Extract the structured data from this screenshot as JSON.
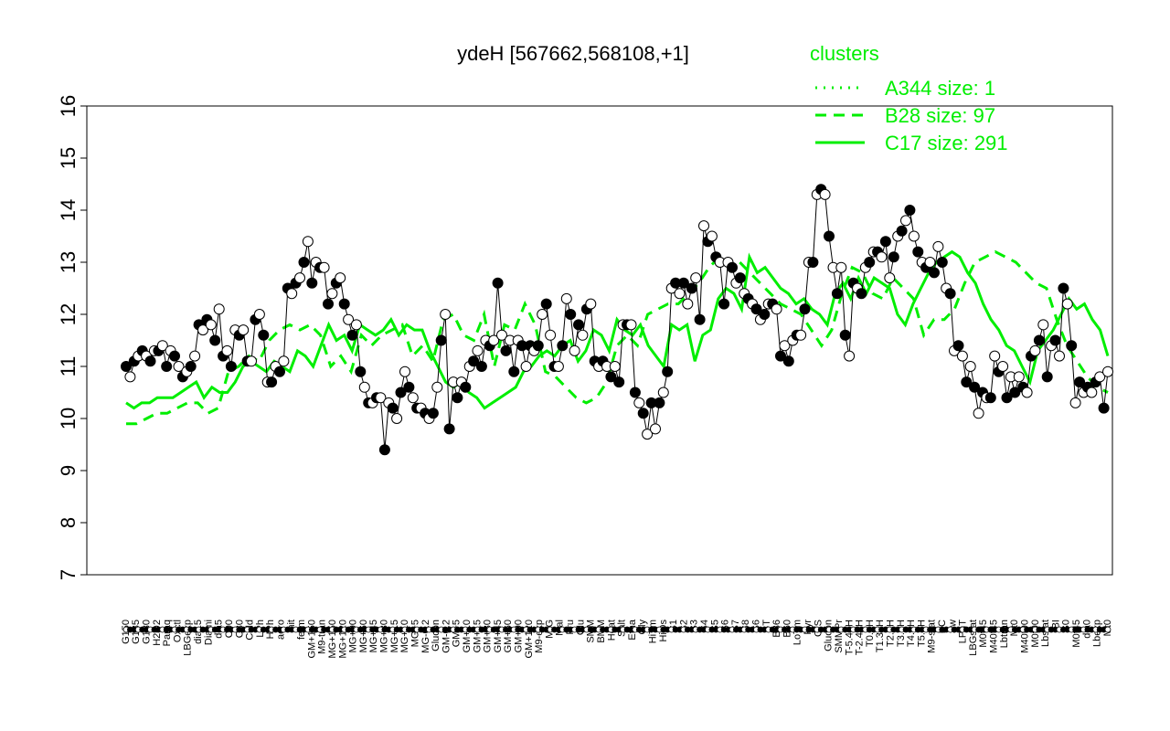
{
  "chart_data": {
    "type": "line",
    "title": "ydeH [567662,568108,+1]",
    "xlabel": "",
    "ylabel": "",
    "ylim": [
      7,
      16
    ],
    "yticks": [
      "7",
      "8",
      "9",
      "10",
      "11",
      "12",
      "13",
      "14",
      "15",
      "16"
    ],
    "xtick_labels_upper": [
      "G150",
      "G135",
      "G180",
      "H2O2",
      "Paraq",
      "Oxctl",
      "LBGexp",
      "dia15",
      "Diami",
      "dia5",
      "C90",
      "C30",
      "Cold",
      "LPh",
      "HPh",
      "aero",
      "nit",
      "ferm",
      "GM+150",
      "M9-tran",
      "MG+150",
      "MG+120",
      "MG+90",
      "MG+60",
      "MG+45",
      "MG+30",
      "MG+15",
      "MG+10",
      "MG+5",
      "MG-0.2",
      "Glucon",
      "GM-0.2",
      "GM+5",
      "GM+10",
      "GM+15",
      "GM+30",
      "GM+45",
      "GM+60",
      "GM+90",
      "GM+120",
      "M9-exp",
      "M/G",
      "Mal",
      "Fru",
      "Glu",
      "SMM",
      "BMM",
      "Heat",
      "Salt",
      "Etha",
      "Gly",
      "HiTm",
      "HiOs",
      "S1",
      "S2",
      "S3",
      "S4",
      "S5",
      "S6",
      "S7",
      "S8",
      "S6",
      "BT",
      "B36",
      "B60",
      "LoTm",
      "Pyr",
      "G/S",
      "Glucon",
      "SMMPr",
      "T-5.40H",
      "T-2.40H",
      "T0.0H",
      "T1.30H",
      "T2.0H",
      "T3.0H",
      "T4.0H",
      "T5.0H",
      "M9-stat",
      "BC",
      "Sw",
      "LPhT",
      "LBGstat",
      "M0t45",
      "M40t45",
      "Lbtran",
      "Mt0",
      "M40t90",
      "M0t90",
      "Lbstat",
      "BI",
      "S0",
      "M0t45",
      "dia0",
      "Lbexp",
      "Mt0"
    ],
    "legend": {
      "title": "clusters",
      "placement": "top-right",
      "entries": [
        {
          "label": "A344 size: 1",
          "style": "dotted"
        },
        {
          "label": "B28 size: 97",
          "style": "dashed"
        },
        {
          "label": "C17 size: 291",
          "style": "solid"
        }
      ]
    },
    "series": [
      {
        "name": "ydeH",
        "values": [
          11.0,
          10.8,
          11.1,
          11.2,
          11.3,
          11.2,
          11.1,
          11.3,
          11.3,
          11.4,
          11.0,
          11.3,
          11.2,
          11.0,
          10.8,
          10.9,
          11.0,
          11.2,
          11.8,
          11.7,
          11.9,
          11.8,
          11.5,
          12.1,
          11.2,
          11.3,
          11.0,
          11.7,
          11.6,
          11.7,
          11.1,
          11.1,
          11.9,
          12.0,
          11.6,
          10.7,
          10.7,
          11.0,
          10.9,
          11.1,
          12.5,
          12.4,
          12.6,
          12.7,
          13.0,
          13.4,
          12.6,
          13.0,
          12.9,
          12.9,
          12.2,
          12.4,
          12.6,
          12.7,
          12.2,
          11.9,
          11.6,
          11.8,
          10.9,
          10.6,
          10.3,
          10.3,
          10.4,
          10.4,
          9.4,
          10.3,
          10.2,
          10.0,
          10.5,
          10.9,
          10.6,
          10.4,
          10.2,
          10.2,
          10.1,
          10.0,
          10.1,
          10.6,
          11.5,
          12.0,
          9.8,
          10.7,
          10.4,
          10.7,
          10.6,
          11.0,
          11.1,
          11.3,
          11.0,
          11.5,
          11.4,
          11.5,
          12.6,
          11.6,
          11.3,
          11.5,
          10.9,
          11.5,
          11.4,
          11.0,
          11.4,
          11.3,
          11.4,
          12.0,
          12.2,
          11.6,
          11.0,
          11.0,
          11.4,
          12.3,
          12.0,
          11.3,
          11.8,
          11.6,
          12.1,
          12.2,
          11.1,
          11.0,
          11.1,
          11.0,
          10.8,
          11.0,
          10.7,
          11.8,
          11.8,
          11.8,
          10.5,
          10.3,
          10.1,
          9.7,
          10.3,
          9.8,
          10.3,
          10.5,
          10.9,
          12.5,
          12.6,
          12.4,
          12.6,
          12.2,
          12.5,
          12.7,
          11.9,
          13.7,
          13.4,
          13.5,
          13.1,
          13.0,
          12.2,
          13.0,
          12.9,
          12.6,
          12.7,
          12.4,
          12.3,
          12.2,
          12.1,
          11.9,
          12.0,
          12.2,
          12.2,
          12.1,
          11.2,
          11.4,
          11.1,
          11.5,
          11.6,
          11.6,
          12.1,
          13.0,
          13.0,
          14.3,
          14.4,
          14.3,
          13.5,
          12.9,
          12.4,
          12.9,
          11.6,
          11.2,
          12.6,
          12.5,
          12.4,
          12.9,
          13.0,
          13.2,
          13.2,
          13.1,
          13.4,
          12.7,
          13.1,
          13.5,
          13.6,
          13.8,
          14.0,
          13.5,
          13.2,
          13.0,
          12.9,
          13.0,
          12.8,
          13.3,
          13.0,
          12.5,
          12.4,
          11.3,
          11.4,
          11.2,
          10.7,
          11.0,
          10.6,
          10.1,
          10.5,
          10.4,
          10.4,
          11.2,
          10.9,
          11.0,
          10.4,
          10.8,
          10.5,
          10.8,
          10.6,
          10.5,
          11.2,
          11.3,
          11.5,
          11.8,
          10.8,
          11.4,
          11.5,
          11.2,
          12.5,
          12.2,
          11.4,
          10.3,
          10.7,
          10.5,
          10.6,
          10.5,
          10.7,
          10.8,
          10.2,
          10.9
        ]
      },
      {
        "name": "C17 size: 291",
        "values": [
          10.3,
          10.2,
          10.3,
          10.3,
          10.4,
          10.4,
          10.4,
          10.5,
          10.6,
          10.7,
          10.4,
          10.6,
          10.5,
          10.5,
          10.7,
          11.0,
          11.1,
          11.0,
          10.9,
          11.1,
          11.0,
          10.9,
          11.3,
          11.2,
          11.0,
          11.4,
          11.8,
          11.5,
          11.6,
          11.3,
          11.8,
          11.7,
          11.6,
          11.7,
          11.9,
          11.6,
          11.8,
          11.7,
          11.7,
          11.3,
          11.0,
          10.7,
          10.6,
          10.7,
          10.5,
          10.4,
          10.2,
          10.3,
          10.4,
          10.5,
          10.6,
          10.9,
          11.0,
          11.2,
          11.3,
          11.2,
          11.4,
          11.5,
          11.1,
          11.3,
          11.7,
          11.6,
          11.3,
          11.9,
          11.7,
          11.6,
          11.8,
          11.4,
          11.2,
          11.0,
          11.8,
          11.7,
          11.8,
          11.1,
          11.6,
          11.7,
          12.3,
          12.5,
          12.4,
          12.1,
          13.1,
          12.8,
          12.9,
          12.7,
          12.5,
          12.4,
          12.2,
          12.3,
          12.1,
          12.0,
          11.8,
          12.4,
          12.6,
          12.3,
          12.7,
          12.4,
          12.7,
          12.6,
          12.5,
          12.0,
          11.8,
          12.2,
          12.5,
          12.8,
          13.0,
          13.1,
          13.2,
          13.1,
          12.8,
          12.6,
          12.2,
          11.9,
          11.7,
          11.4,
          11.3,
          11.0,
          10.7,
          11.3,
          11.5,
          11.7,
          12.0,
          12.3,
          12.1,
          12.2,
          11.9,
          11.7,
          11.2
        ]
      },
      {
        "name": "B28 size: 97",
        "values": [
          9.9,
          9.9,
          10.0,
          10.1,
          10.1,
          10.2,
          10.3,
          10.3,
          10.1,
          10.2,
          10.9,
          11.0,
          11.2,
          11.1,
          11.5,
          11.7,
          11.8,
          11.7,
          11.8,
          11.6,
          11.0,
          11.2,
          10.9,
          11.6,
          11.4,
          11.6,
          11.7,
          11.8,
          11.2,
          11.4,
          11.1,
          11.9,
          12.0,
          11.6,
          11.5,
          12.0,
          11.0,
          11.8,
          11.7,
          12.2,
          11.8,
          10.9,
          10.8,
          10.6,
          10.4,
          10.3,
          10.4,
          10.7,
          11.4,
          11.6,
          11.4,
          12.0,
          12.1,
          12.2,
          12.2,
          12.4,
          12.6,
          12.9,
          13.1,
          12.9,
          13.0,
          12.8,
          12.6,
          12.4,
          12.2,
          12.1,
          12.0,
          11.7,
          11.4,
          11.7,
          12.4,
          12.9,
          12.8,
          12.4,
          12.3,
          12.7,
          12.5,
          12.3,
          11.6,
          11.9,
          11.9,
          12.1,
          12.6,
          13.0,
          13.1,
          13.2,
          13.1,
          13.0,
          12.8,
          12.6,
          12.5,
          11.9,
          11.4,
          11.1,
          10.8,
          10.6,
          10.5
        ]
      }
    ]
  }
}
